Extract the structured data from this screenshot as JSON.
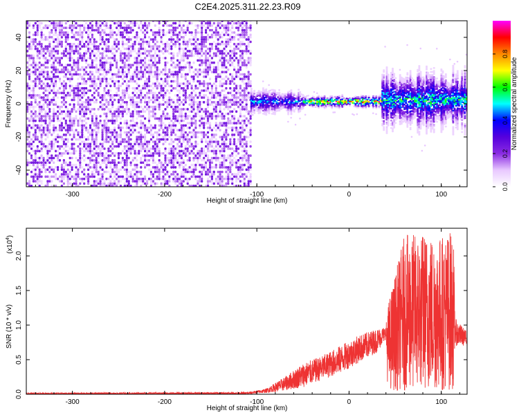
{
  "title": "C2E4.2025.311.22.23.R09",
  "chart_data": [
    {
      "type": "heatmap",
      "name": "spectrogram",
      "xlabel": "Height of straight line (km)",
      "ylabel": "Frequency (Hz)",
      "xlim": [
        -350,
        128
      ],
      "ylim": [
        -50,
        50
      ],
      "xticks": [
        -300,
        -200,
        -100,
        0,
        100
      ],
      "yticks": [
        -40,
        -20,
        0,
        20,
        40
      ],
      "colorbar": {
        "label": "Normalized spectral amplitude",
        "range": [
          0,
          1
        ],
        "ticks": [
          0.0,
          0.2,
          0.4,
          0.6,
          0.8
        ],
        "tick_labels": [
          "0.0",
          "0.2",
          "0.4",
          "0.6",
          "0.8"
        ],
        "colormap": [
          "#ffffff",
          "#e8c8ff",
          "#8a2be2",
          "#5500dd",
          "#0000ff",
          "#00ffff",
          "#00ff00",
          "#ffff00",
          "#ff8800",
          "#ff0000",
          "#ff00ff"
        ]
      },
      "noise_region": {
        "x_range": [
          -350,
          -107
        ],
        "y_range": [
          -50,
          50
        ],
        "amplitude": [
          0.05,
          0.25
        ]
      },
      "signal_band": [
        {
          "x_range": [
            -107,
            -50
          ],
          "f_center": 1,
          "f_halfwidth": 6,
          "peak_amplitude": 0.5
        },
        {
          "x_range": [
            -50,
            35
          ],
          "f_center": 1,
          "f_halfwidth": 3,
          "peak_amplitude": 0.9
        },
        {
          "x_range": [
            35,
            128
          ],
          "f_center": 2,
          "f_halfwidth": 15,
          "peak_amplitude": 0.6
        }
      ]
    },
    {
      "type": "line",
      "name": "snr",
      "xlabel": "Height of straight line (km)",
      "ylabel": "SNR (10 * v/v)",
      "yexponent_label": "(x10",
      "yexponent_power": "4",
      "yexponent_close": ")",
      "xlim": [
        -350,
        128
      ],
      "ylim": [
        0,
        2.4
      ],
      "xticks": [
        -300,
        -200,
        -100,
        0,
        100
      ],
      "yticks": [
        0.0,
        0.5,
        1.0,
        1.5,
        2.0
      ],
      "ytick_labels": [
        "0.0",
        "0.5",
        "1.0",
        "1.5",
        "2.0"
      ],
      "color": "#ee3333",
      "envelope": [
        {
          "x": -350,
          "low": 0.0,
          "high": 0.02
        },
        {
          "x": -110,
          "low": 0.0,
          "high": 0.03
        },
        {
          "x": -90,
          "low": 0.02,
          "high": 0.08
        },
        {
          "x": -70,
          "low": 0.05,
          "high": 0.25
        },
        {
          "x": -50,
          "low": 0.1,
          "high": 0.45
        },
        {
          "x": -30,
          "low": 0.2,
          "high": 0.55
        },
        {
          "x": -10,
          "low": 0.3,
          "high": 0.7
        },
        {
          "x": 10,
          "low": 0.45,
          "high": 0.85
        },
        {
          "x": 30,
          "low": 0.6,
          "high": 0.95
        },
        {
          "x": 40,
          "low": 0.8,
          "high": 0.98
        },
        {
          "x": 42,
          "low": 0.05,
          "high": 1.3
        },
        {
          "x": 60,
          "low": 0.05,
          "high": 2.3
        },
        {
          "x": 80,
          "low": 0.05,
          "high": 2.35
        },
        {
          "x": 100,
          "low": 0.05,
          "high": 2.3
        },
        {
          "x": 113,
          "low": 0.05,
          "high": 2.4
        },
        {
          "x": 115,
          "low": 0.7,
          "high": 1.1
        },
        {
          "x": 128,
          "low": 0.7,
          "high": 0.9
        }
      ]
    }
  ]
}
